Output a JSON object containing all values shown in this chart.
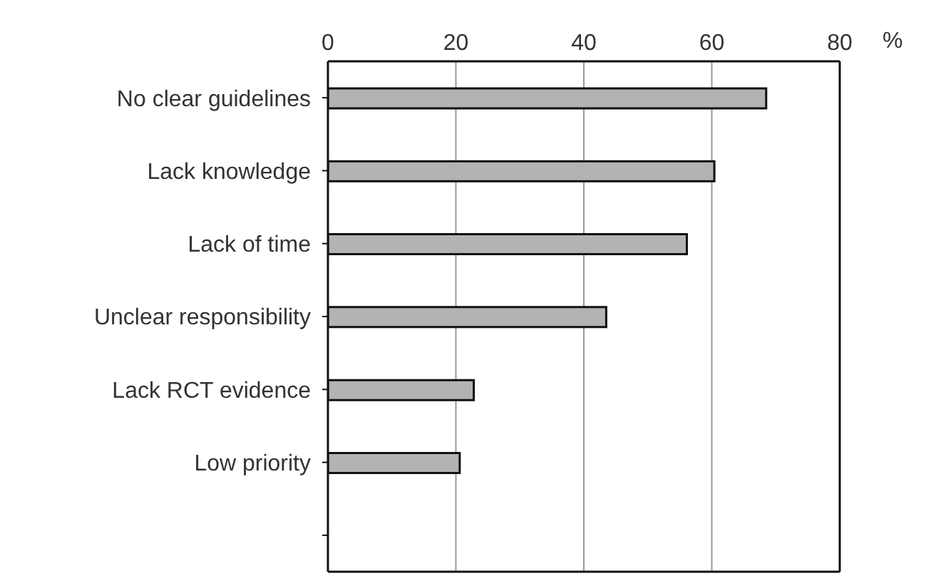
{
  "chart_data": {
    "type": "bar",
    "orientation": "horizontal",
    "xlabel": "%",
    "categories": [
      "No clear guidelines",
      "Lack knowledge",
      "Lack of time",
      "Unclear responsibility",
      "Lack RCT evidence",
      "Low priority",
      null
    ],
    "values": [
      68.5,
      60.4,
      56.1,
      43.5,
      22.8,
      20.6,
      null
    ],
    "color": "#b3b3b3",
    "xlim": [
      0,
      80
    ],
    "xticks": [
      0,
      20,
      40,
      60,
      80
    ],
    "grid": "x"
  }
}
